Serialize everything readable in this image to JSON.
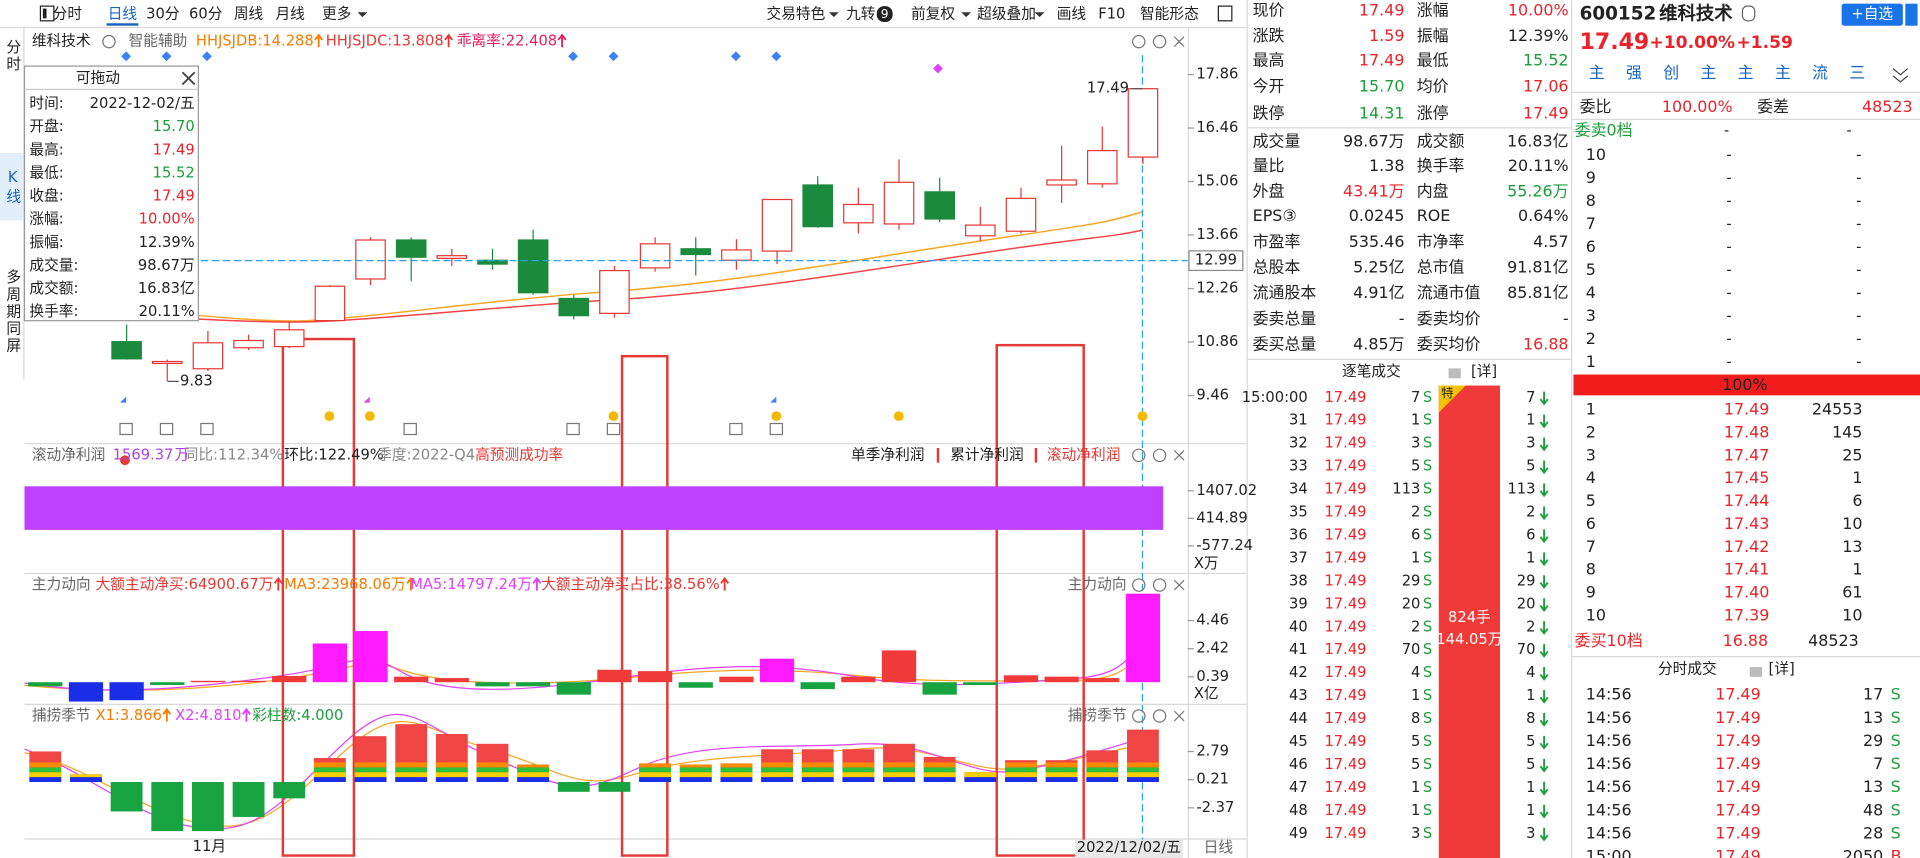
{
  "toolbar": {
    "left": [
      "分时",
      "日线",
      "30分",
      "60分",
      "周线",
      "月线",
      "更多"
    ],
    "right": [
      "交易特色",
      "九转",
      "前复权",
      "超级叠加",
      "画线",
      "F10",
      "智能形态"
    ],
    "badge": "9"
  },
  "sidebar": [
    "分时",
    "K线",
    "多周期同屏"
  ],
  "kline": {
    "stock": "维科技术",
    "assist": "智能辅助",
    "indicators": [
      "HHJSJDB:14.288",
      "HHJSJDC:13.808",
      "乖离率:22.408"
    ],
    "ylim": [
      8.92,
      18.37
    ],
    "yticks": [
      9.46,
      10.86,
      12.26,
      13.66,
      15.06,
      16.46,
      17.86
    ],
    "open": [
      null,
      null,
      10.87,
      10.3,
      10.16,
      10.71,
      10.74,
      11.42,
      12.51,
      13.53,
      13.05,
      13.0,
      13.53,
      12.0,
      11.61,
      12.8,
      13.3,
      13.0,
      13.24,
      14.97,
      13.98,
      13.95,
      14.79,
      13.64,
      13.76,
      14.97,
      15.0,
      15.7
    ],
    "high": [
      null,
      null,
      11.32,
      10.4,
      11.15,
      11.05,
      11.4,
      12.35,
      13.6,
      13.6,
      13.3,
      13.3,
      13.8,
      12.1,
      12.85,
      13.6,
      13.6,
      13.55,
      14.6,
      15.2,
      14.9,
      15.64,
      15.16,
      14.4,
      14.9,
      16.0,
      16.5,
      17.49
    ],
    "low": [
      null,
      null,
      10.4,
      9.83,
      10.1,
      10.65,
      10.7,
      11.4,
      12.35,
      12.45,
      12.85,
      12.75,
      12.1,
      11.45,
      11.5,
      12.7,
      12.6,
      12.75,
      12.9,
      13.85,
      13.7,
      13.8,
      14.0,
      13.5,
      13.7,
      14.5,
      14.9,
      15.52
    ],
    "close": [
      null,
      null,
      10.42,
      10.35,
      10.84,
      10.9,
      11.18,
      12.32,
      13.53,
      13.08,
      13.12,
      12.9,
      12.15,
      11.55,
      12.73,
      13.43,
      13.15,
      13.27,
      14.59,
      13.88,
      14.46,
      15.04,
      14.08,
      13.92,
      14.62,
      15.1,
      15.87,
      17.49
    ],
    "high_label": 17.49,
    "low_label": 9.83,
    "crosshair_price": 12.99,
    "month_label": "11月",
    "date_label": "2022/12/02/五",
    "period_label": "日线"
  },
  "popup": {
    "title": "可拖动",
    "rows": [
      [
        "时间:",
        "2022-12-02/五"
      ],
      [
        "开盘:",
        "15.70"
      ],
      [
        "最高:",
        "17.49"
      ],
      [
        "最低:",
        "15.52"
      ],
      [
        "收盘:",
        "17.49"
      ],
      [
        "涨幅:",
        "10.00%"
      ],
      [
        "振幅:",
        "12.39%"
      ],
      [
        "成交量:",
        "98.67万"
      ],
      [
        "成交额:",
        "16.83亿"
      ],
      [
        "换手率:",
        "20.11%"
      ]
    ]
  },
  "profit": {
    "title": "滚动净利润",
    "value": 1569.37,
    "unit": "万",
    "items": [
      "同比:112.34%",
      "环比:122.49%",
      "季度:2022-Q4",
      "高预测成功率"
    ],
    "legend": [
      "单季净利润",
      "累计净利润",
      "滚动净利润"
    ],
    "color": "#c040ff",
    "ylim": [
      -841.8,
      1803.9
    ],
    "yticks": [
      -577.24,
      414.89,
      1407.02
    ],
    "axis_unit": "X万"
  },
  "main_force": {
    "title": "主力动向",
    "items": [
      "大额主动净买:64900.67万",
      "MA3:23968.06万",
      "MA5:14797.24万",
      "大额主动净买占比:38.56%"
    ],
    "ylim": [
      -1.56,
      7.91
    ],
    "yticks": [
      0.39,
      2.42,
      4.46
    ],
    "axis_unit": "X亿",
    "values": [
      -0.3,
      -1.4,
      -1.3,
      -0.2,
      0.1,
      0.1,
      0.45,
      2.8,
      3.7,
      0.4,
      0.3,
      -0.3,
      -0.3,
      -0.9,
      0.9,
      0.8,
      -0.4,
      0.4,
      1.7,
      -0.5,
      0.4,
      2.3,
      -0.9,
      -0.2,
      0.5,
      0.4,
      0.3,
      6.4
    ],
    "colors": [
      "#17a340",
      "#1a2ee8",
      "#1a2ee8",
      "#17a340",
      "#f03a3a",
      "#f03a3a",
      "#f03a3a",
      "#ff1aff",
      "#ff1aff",
      "#f03a3a",
      "#f03a3a",
      "#17a340",
      "#17a340",
      "#17a340",
      "#f03a3a",
      "#f03a3a",
      "#17a340",
      "#f03a3a",
      "#ff1aff",
      "#17a340",
      "#f03a3a",
      "#f03a3a",
      "#17a340",
      "#17a340",
      "#f03a3a",
      "#f03a3a",
      "#f03a3a",
      "#ff1aff"
    ]
  },
  "catch": {
    "title": "捕捞季节",
    "items": [
      "X1:3.866",
      "X2:4.810",
      "彩柱数:4.000"
    ],
    "ylim": [
      -5.17,
      6.83
    ],
    "yticks": [
      -2.37,
      0.21,
      2.79
    ],
    "values": [
      2.8,
      0.7,
      -2.7,
      -4.5,
      -4.5,
      -3.2,
      -1.5,
      2.2,
      4.2,
      5.3,
      4.4,
      3.5,
      1.6,
      -0.9,
      -0.9,
      1.7,
      1.6,
      1.7,
      3.0,
      3.0,
      3.0,
      3.5,
      2.3,
      0.9,
      2.0,
      2.0,
      2.9,
      4.8
    ]
  },
  "quote": {
    "rows": [
      [
        [
          "现价",
          "17.49"
        ],
        [
          "涨幅",
          "10.00%"
        ]
      ],
      [
        [
          "涨跌",
          "1.59"
        ],
        [
          "振幅",
          "12.39%"
        ]
      ],
      [
        [
          "最高",
          "17.49"
        ],
        [
          "最低",
          "15.52"
        ]
      ],
      [
        [
          "今开",
          "15.70"
        ],
        [
          "均价",
          "17.06"
        ]
      ],
      [
        [
          "跌停",
          "14.31"
        ],
        [
          "涨停",
          "17.49"
        ]
      ],
      [
        [
          "成交量",
          "98.67万"
        ],
        [
          "成交额",
          "16.83亿"
        ]
      ],
      [
        [
          "量比",
          "1.38"
        ],
        [
          "换手率",
          "20.11%"
        ]
      ],
      [
        [
          "外盘",
          "43.41万"
        ],
        [
          "内盘",
          "55.26万"
        ]
      ],
      [
        [
          "EPS③",
          "0.0245"
        ],
        [
          "ROE",
          "0.64%"
        ]
      ],
      [
        [
          "市盈率",
          "535.46"
        ],
        [
          "市净率",
          "4.57"
        ]
      ],
      [
        [
          "总股本",
          "5.25亿"
        ],
        [
          "总市值",
          "91.81亿"
        ]
      ],
      [
        [
          "流通股本",
          "4.91亿"
        ],
        [
          "流通市值",
          "85.81亿"
        ]
      ],
      [
        [
          "委卖总量",
          "-"
        ],
        [
          "委卖均价",
          "-"
        ]
      ],
      [
        [
          "委买总量",
          "4.85万"
        ],
        [
          "委买均价",
          "16.88"
        ]
      ]
    ]
  },
  "ticks": {
    "title": "逐笔成交",
    "detail": "[详]",
    "badge": "特",
    "bar_top": "824手",
    "bar_bottom": "144.05万",
    "rows": [
      [
        "15:00:00",
        "17.49",
        "7",
        "S",
        "7"
      ],
      [
        "31",
        "17.49",
        "1",
        "S",
        "1"
      ],
      [
        "32",
        "17.49",
        "3",
        "S",
        "3"
      ],
      [
        "33",
        "17.49",
        "5",
        "S",
        "5"
      ],
      [
        "34",
        "17.49",
        "113",
        "S",
        "113"
      ],
      [
        "35",
        "17.49",
        "2",
        "S",
        "2"
      ],
      [
        "36",
        "17.49",
        "6",
        "S",
        "6"
      ],
      [
        "37",
        "17.49",
        "1",
        "S",
        "1"
      ],
      [
        "38",
        "17.49",
        "29",
        "S",
        "29"
      ],
      [
        "39",
        "17.49",
        "20",
        "S",
        "20"
      ],
      [
        "40",
        "17.49",
        "2",
        "S",
        "2"
      ],
      [
        "41",
        "17.49",
        "70",
        "S",
        "70"
      ],
      [
        "42",
        "17.49",
        "4",
        "S",
        "4"
      ],
      [
        "43",
        "17.49",
        "1",
        "S",
        "1"
      ],
      [
        "44",
        "17.49",
        "8",
        "S",
        "8"
      ],
      [
        "45",
        "17.49",
        "5",
        "S",
        "5"
      ],
      [
        "46",
        "17.49",
        "5",
        "S",
        "5"
      ],
      [
        "47",
        "17.49",
        "1",
        "S",
        "1"
      ],
      [
        "48",
        "17.49",
        "1",
        "S",
        "1"
      ],
      [
        "49",
        "17.49",
        "3",
        "S",
        "3"
      ]
    ]
  },
  "book": {
    "code": "600152",
    "name": "维科技术",
    "add": "+自选",
    "price": "17.49",
    "pct": "+10.00%",
    "change": "+1.59",
    "buttons": [
      "主",
      "强",
      "创",
      "主",
      "主",
      "主",
      "流",
      "三"
    ],
    "ratio_label": "委比",
    "ratio": "100.00%",
    "diff_label": "委差",
    "diff": "48523",
    "sell_header": [
      "委卖0档",
      "-",
      "-"
    ],
    "sell": [
      [
        "10",
        "-",
        "-"
      ],
      [
        "9",
        "-",
        "-"
      ],
      [
        "8",
        "-",
        "-"
      ],
      [
        "7",
        "-",
        "-"
      ],
      [
        "6",
        "-",
        "-"
      ],
      [
        "5",
        "-",
        "-"
      ],
      [
        "4",
        "-",
        "-"
      ],
      [
        "3",
        "-",
        "-"
      ],
      [
        "2",
        "-",
        "-"
      ],
      [
        "1",
        "-",
        "-"
      ]
    ],
    "bar": "100%",
    "buy": [
      [
        "1",
        "17.49",
        "24553"
      ],
      [
        "2",
        "17.48",
        "145"
      ],
      [
        "3",
        "17.47",
        "25"
      ],
      [
        "4",
        "17.45",
        "1"
      ],
      [
        "5",
        "17.44",
        "6"
      ],
      [
        "6",
        "17.43",
        "10"
      ],
      [
        "7",
        "17.42",
        "13"
      ],
      [
        "8",
        "17.41",
        "1"
      ],
      [
        "9",
        "17.40",
        "61"
      ],
      [
        "10",
        "17.39",
        "10"
      ]
    ],
    "buy_footer": [
      "委买10档",
      "16.88",
      "48523"
    ],
    "trades_title": "分时成交",
    "trades_detail": "[详]",
    "trades": [
      [
        "14:56",
        "17.49",
        "17",
        "S"
      ],
      [
        "14:56",
        "17.49",
        "13",
        "S"
      ],
      [
        "14:56",
        "17.49",
        "29",
        "S"
      ],
      [
        "14:56",
        "17.49",
        "7",
        "S"
      ],
      [
        "14:56",
        "17.49",
        "13",
        "S"
      ],
      [
        "14:56",
        "17.49",
        "48",
        "S"
      ],
      [
        "14:56",
        "17.49",
        "28",
        "S"
      ],
      [
        "15:00",
        "17.49",
        "2050",
        "B"
      ]
    ]
  }
}
